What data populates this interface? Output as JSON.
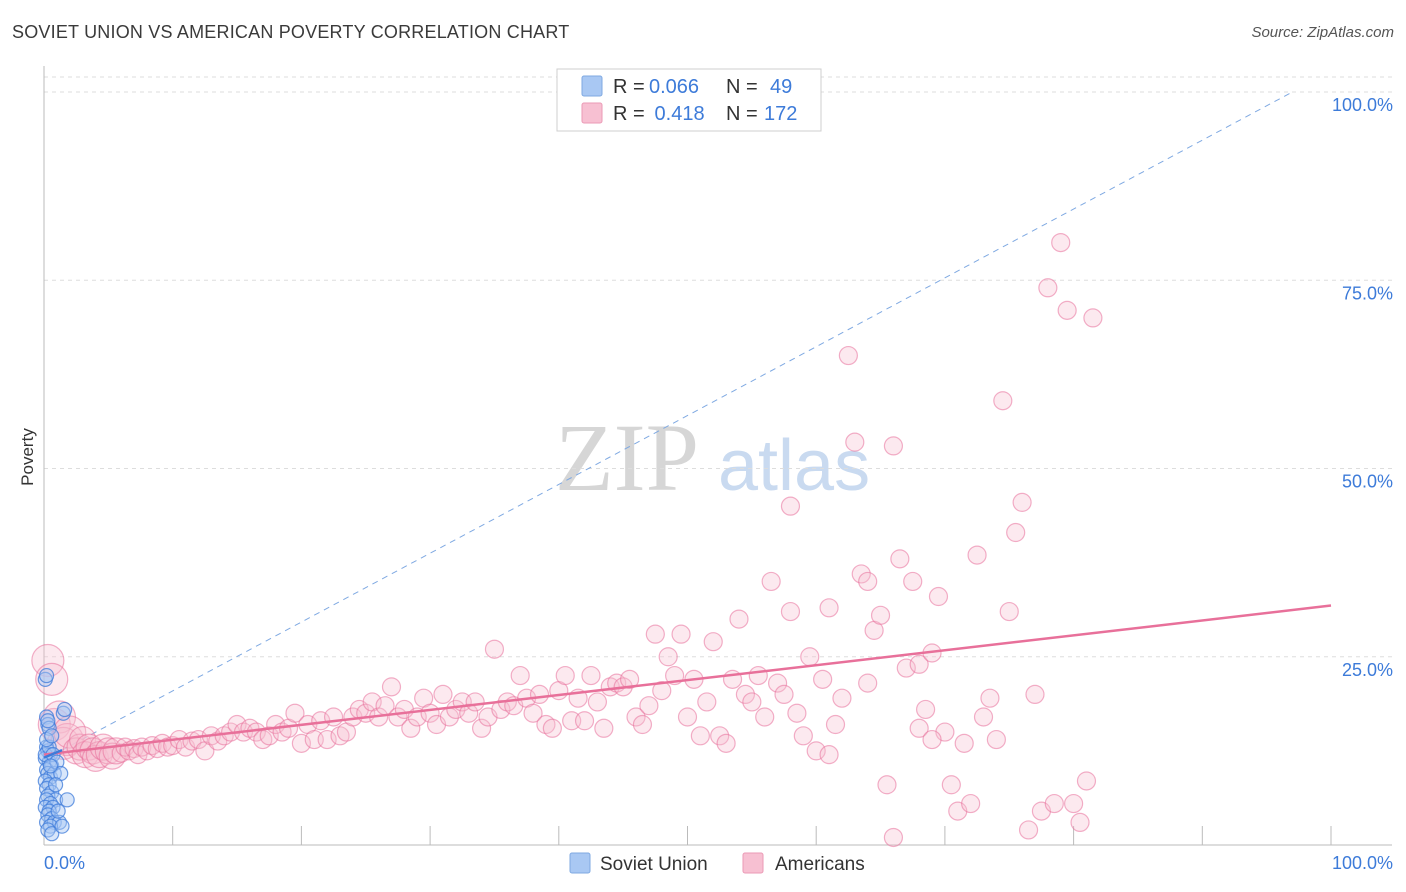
{
  "title": "SOVIET UNION VS AMERICAN POVERTY CORRELATION CHART",
  "source": "Source: ZipAtlas.com",
  "watermark": {
    "zip": "ZIP",
    "atlas": "atlas"
  },
  "colors": {
    "soviet": "#3d7bd9",
    "soviet_fill": "#a9c8f3",
    "american": "#e8709a",
    "american_fill": "#f7c0d2",
    "grid": "#dddddd",
    "tick_label": "#3d7bd9"
  },
  "legend": {
    "rows": [
      {
        "r_label": "R = ",
        "r_value": "0.066",
        "n_label": "N = ",
        "n_value": "49"
      },
      {
        "r_label": "R = ",
        "r_value": " 0.418",
        "n_label": "N = ",
        "n_value": "172"
      }
    ]
  },
  "bottom_legend": [
    "Soviet Union",
    "Americans"
  ],
  "chart_data": {
    "type": "scatter",
    "title": "SOVIET UNION VS AMERICAN POVERTY CORRELATION CHART",
    "xlabel": "",
    "ylabel": "Poverty",
    "xlim": [
      0,
      100
    ],
    "ylim": [
      0,
      100
    ],
    "x_tick_labels": [
      "0.0%",
      "100.0%"
    ],
    "y_tick_labels": [
      "25.0%",
      "50.0%",
      "75.0%",
      "100.0%"
    ],
    "y_ticks": [
      25,
      50,
      75,
      100
    ],
    "grid": true,
    "legend_position": "top-center",
    "series": [
      {
        "name": "Soviet Union",
        "r": 0.066,
        "n": 49,
        "trend": {
          "x": [
            0,
            1.4
          ],
          "y": [
            11.6,
            12.6
          ]
        },
        "diagonal": {
          "x": [
            0,
            100
          ],
          "y": [
            0,
            100
          ]
        },
        "points": [
          [
            0.1,
            22
          ],
          [
            0.2,
            22.5
          ],
          [
            0.2,
            17
          ],
          [
            0.3,
            16
          ],
          [
            0.4,
            15.5
          ],
          [
            0.2,
            13
          ],
          [
            0.3,
            12.5
          ],
          [
            0.5,
            12
          ],
          [
            0.1,
            11.5
          ],
          [
            0.4,
            11
          ],
          [
            0.6,
            10.5
          ],
          [
            0.2,
            10
          ],
          [
            0.3,
            9.5
          ],
          [
            0.5,
            9
          ],
          [
            0.8,
            9.5
          ],
          [
            0.1,
            8.5
          ],
          [
            0.4,
            8
          ],
          [
            0.2,
            7.5
          ],
          [
            0.6,
            7
          ],
          [
            0.3,
            6.5
          ],
          [
            0.9,
            6
          ],
          [
            0.2,
            6
          ],
          [
            0.5,
            5.5
          ],
          [
            0.1,
            5
          ],
          [
            0.7,
            5
          ],
          [
            0.4,
            4.5
          ],
          [
            0.3,
            4
          ],
          [
            0.6,
            3.5
          ],
          [
            0.2,
            3
          ],
          [
            0.8,
            3
          ],
          [
            1.2,
            3
          ],
          [
            0.5,
            2.5
          ],
          [
            0.3,
            2
          ],
          [
            0.6,
            1.5
          ],
          [
            0.1,
            12
          ],
          [
            0.4,
            13
          ],
          [
            0.7,
            12
          ],
          [
            1.0,
            11
          ],
          [
            1.5,
            17.5
          ],
          [
            1.6,
            18
          ],
          [
            1.8,
            6
          ],
          [
            1.3,
            9.5
          ],
          [
            0.9,
            8
          ],
          [
            0.5,
            10.5
          ],
          [
            0.2,
            14
          ],
          [
            0.6,
            14.5
          ],
          [
            1.1,
            4.5
          ],
          [
            1.4,
            2.5
          ],
          [
            0.3,
            16.5
          ]
        ]
      },
      {
        "name": "Americans",
        "r": 0.418,
        "n": 172,
        "trend": {
          "x": [
            0,
            100
          ],
          "y": [
            12.0,
            31.8
          ]
        },
        "points": [
          [
            0.3,
            24.5
          ],
          [
            0.6,
            22
          ],
          [
            0.8,
            16
          ],
          [
            1.2,
            17
          ],
          [
            1.5,
            13.5
          ],
          [
            1.8,
            14
          ],
          [
            2.0,
            15
          ],
          [
            2.5,
            12.5
          ],
          [
            2.8,
            13
          ],
          [
            3.0,
            14
          ],
          [
            3.2,
            12
          ],
          [
            3.5,
            13
          ],
          [
            3.8,
            12.5
          ],
          [
            4.0,
            11.5
          ],
          [
            4.3,
            12
          ],
          [
            4.6,
            13
          ],
          [
            5.0,
            12.5
          ],
          [
            5.3,
            11.8
          ],
          [
            5.6,
            12.5
          ],
          [
            6.0,
            12.2
          ],
          [
            6.3,
            13
          ],
          [
            6.6,
            12.5
          ],
          [
            7.0,
            12.8
          ],
          [
            7.3,
            12
          ],
          [
            7.6,
            13
          ],
          [
            8.0,
            12.5
          ],
          [
            8.4,
            13.2
          ],
          [
            8.8,
            12.8
          ],
          [
            9.2,
            13.5
          ],
          [
            9.6,
            13
          ],
          [
            10.0,
            13.2
          ],
          [
            10.5,
            14
          ],
          [
            11.0,
            13
          ],
          [
            11.5,
            13.8
          ],
          [
            12.0,
            14
          ],
          [
            12.5,
            12.5
          ],
          [
            13.0,
            14.5
          ],
          [
            13.5,
            13.8
          ],
          [
            14.0,
            14.5
          ],
          [
            14.5,
            15
          ],
          [
            15.0,
            16
          ],
          [
            15.5,
            15
          ],
          [
            16.0,
            15.5
          ],
          [
            16.5,
            15
          ],
          [
            17.0,
            14
          ],
          [
            17.5,
            14.5
          ],
          [
            18.0,
            16
          ],
          [
            18.5,
            15
          ],
          [
            19.0,
            15.5
          ],
          [
            19.5,
            17.5
          ],
          [
            20.0,
            13.5
          ],
          [
            20.5,
            16
          ],
          [
            21.0,
            14
          ],
          [
            21.5,
            16.5
          ],
          [
            22.0,
            14
          ],
          [
            22.5,
            17
          ],
          [
            23.0,
            14.5
          ],
          [
            23.5,
            15
          ],
          [
            24.0,
            17
          ],
          [
            24.5,
            18
          ],
          [
            25.0,
            17.5
          ],
          [
            25.5,
            19
          ],
          [
            26.0,
            17
          ],
          [
            26.5,
            18.5
          ],
          [
            27.0,
            21
          ],
          [
            27.5,
            17
          ],
          [
            28.0,
            18
          ],
          [
            28.5,
            15.5
          ],
          [
            29.0,
            17
          ],
          [
            29.5,
            19.5
          ],
          [
            30.0,
            17.5
          ],
          [
            30.5,
            16
          ],
          [
            31.0,
            20
          ],
          [
            31.5,
            17
          ],
          [
            32.0,
            18
          ],
          [
            32.5,
            19
          ],
          [
            33.0,
            17.5
          ],
          [
            33.5,
            19
          ],
          [
            34.0,
            15.5
          ],
          [
            34.5,
            17
          ],
          [
            35.0,
            26
          ],
          [
            35.5,
            18
          ],
          [
            36.0,
            19
          ],
          [
            36.5,
            18.5
          ],
          [
            37.0,
            22.5
          ],
          [
            37.5,
            19.5
          ],
          [
            38.0,
            17.5
          ],
          [
            38.5,
            20
          ],
          [
            39.0,
            16
          ],
          [
            39.5,
            15.5
          ],
          [
            40.0,
            20.5
          ],
          [
            40.5,
            22.5
          ],
          [
            41.0,
            16.5
          ],
          [
            41.5,
            19.5
          ],
          [
            42.0,
            16.5
          ],
          [
            42.5,
            22.5
          ],
          [
            43.0,
            19
          ],
          [
            43.5,
            15.5
          ],
          [
            44.0,
            21
          ],
          [
            44.5,
            21.5
          ],
          [
            45.0,
            21
          ],
          [
            45.5,
            22
          ],
          [
            46.0,
            17
          ],
          [
            46.5,
            16
          ],
          [
            47.0,
            18.5
          ],
          [
            47.5,
            28
          ],
          [
            48.0,
            20.5
          ],
          [
            48.5,
            25
          ],
          [
            49.0,
            22.5
          ],
          [
            49.5,
            28
          ],
          [
            50.0,
            17
          ],
          [
            50.5,
            22
          ],
          [
            51.0,
            14.5
          ],
          [
            51.5,
            19
          ],
          [
            52.0,
            27
          ],
          [
            52.5,
            14.5
          ],
          [
            53.0,
            13.5
          ],
          [
            53.5,
            22
          ],
          [
            54.0,
            30
          ],
          [
            54.5,
            20
          ],
          [
            55.0,
            19
          ],
          [
            55.5,
            22.5
          ],
          [
            56.0,
            17
          ],
          [
            56.5,
            35
          ],
          [
            57.0,
            21.5
          ],
          [
            57.5,
            20
          ],
          [
            58.0,
            31
          ],
          [
            58.5,
            17.5
          ],
          [
            59.0,
            14.5
          ],
          [
            59.5,
            25
          ],
          [
            60.0,
            12.5
          ],
          [
            60.5,
            22
          ],
          [
            61.0,
            31.5
          ],
          [
            61.5,
            16
          ],
          [
            62.0,
            19.5
          ],
          [
            62.5,
            65
          ],
          [
            63.0,
            53.5
          ],
          [
            63.5,
            36
          ],
          [
            64.0,
            21.5
          ],
          [
            64.5,
            28.5
          ],
          [
            65.0,
            30.5
          ],
          [
            65.5,
            8
          ],
          [
            66.0,
            53
          ],
          [
            66.5,
            38
          ],
          [
            67.0,
            23.5
          ],
          [
            67.5,
            35
          ],
          [
            68.0,
            24
          ],
          [
            68.5,
            18
          ],
          [
            69.0,
            25.5
          ],
          [
            69.5,
            33
          ],
          [
            70.0,
            15
          ],
          [
            70.5,
            8
          ],
          [
            71.0,
            4.5
          ],
          [
            71.5,
            13.5
          ],
          [
            72.0,
            5.5
          ],
          [
            72.5,
            38.5
          ],
          [
            73.0,
            17
          ],
          [
            73.5,
            19.5
          ],
          [
            74.0,
            14
          ],
          [
            74.5,
            59
          ],
          [
            75.0,
            31
          ],
          [
            75.5,
            41.5
          ],
          [
            76.0,
            45.5
          ],
          [
            76.5,
            2
          ],
          [
            77.0,
            20
          ],
          [
            77.5,
            4.5
          ],
          [
            78.0,
            74
          ],
          [
            78.5,
            5.5
          ],
          [
            79.0,
            80
          ],
          [
            79.5,
            71
          ],
          [
            80.0,
            5.5
          ],
          [
            80.5,
            3
          ],
          [
            81.0,
            8.5
          ],
          [
            81.5,
            70
          ],
          [
            61.0,
            12
          ],
          [
            66.0,
            1
          ],
          [
            68.0,
            15.5
          ],
          [
            69.0,
            14
          ],
          [
            58.0,
            45
          ],
          [
            64.0,
            35
          ]
        ]
      }
    ]
  }
}
